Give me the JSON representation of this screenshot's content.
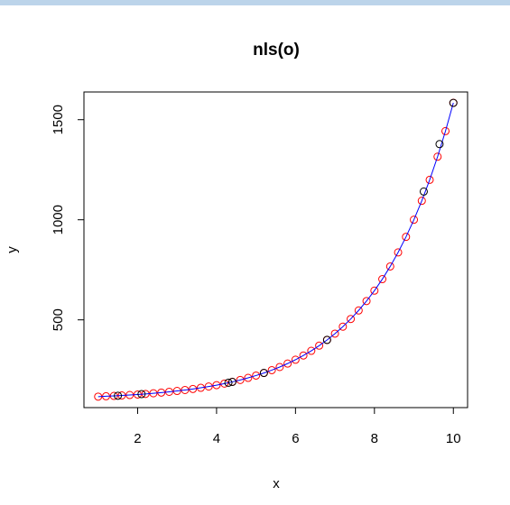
{
  "chart_data": {
    "type": "scatter",
    "title": "nls(o)",
    "xlabel": "x",
    "ylabel": "y",
    "xlim": [
      0.64,
      10.36
    ],
    "ylim": [
      61.6,
      1638.4
    ],
    "xticks": [
      2,
      4,
      6,
      8,
      10
    ],
    "yticks": [
      500,
      1000,
      1500
    ],
    "series": [
      {
        "color": "#ff0000",
        "line_color": "#0000ff",
        "x": [
          1.0,
          1.2,
          1.4,
          1.6,
          1.8,
          2.0,
          2.2,
          2.4,
          2.6,
          2.8,
          3.0,
          3.2,
          3.4,
          3.6,
          3.8,
          4.0,
          4.2,
          4.4,
          4.6,
          4.8,
          5.0,
          5.2,
          5.4,
          5.6,
          5.8,
          6.0,
          6.2,
          6.4,
          6.6,
          6.8,
          7.0,
          7.2,
          7.4,
          7.6,
          7.8,
          8.0,
          8.2,
          8.4,
          8.6,
          8.8,
          9.0,
          9.2,
          9.4,
          9.6,
          9.8,
          10.0
        ],
        "values": [
          116.5,
          118.2,
          120.1,
          122.3,
          124.6,
          127.2,
          130.0,
          133.2,
          136.7,
          140.6,
          144.8,
          149.5,
          154.7,
          160.5,
          166.9,
          173.9,
          181.7,
          190.3,
          199.7,
          210.2,
          221.8,
          234.6,
          248.8,
          264.4,
          281.7,
          300.9,
          322.0,
          345.3,
          371.1,
          399.6,
          431.2,
          466.0,
          504.5,
          547.0,
          594.0,
          646.0,
          703.4,
          766.9,
          837.0,
          914.5,
          1000.2,
          1094.8,
          1199.5,
          1315.1,
          1442.9,
          1584.1
        ]
      },
      {
        "color": "#000000",
        "x": [
          1.5,
          2.1,
          4.3,
          4.4,
          5.2,
          6.8,
          9.25,
          9.65,
          10.0
        ],
        "values": [
          121,
          129,
          186,
          190,
          235,
          400,
          1141,
          1378,
          1584
        ]
      }
    ]
  }
}
